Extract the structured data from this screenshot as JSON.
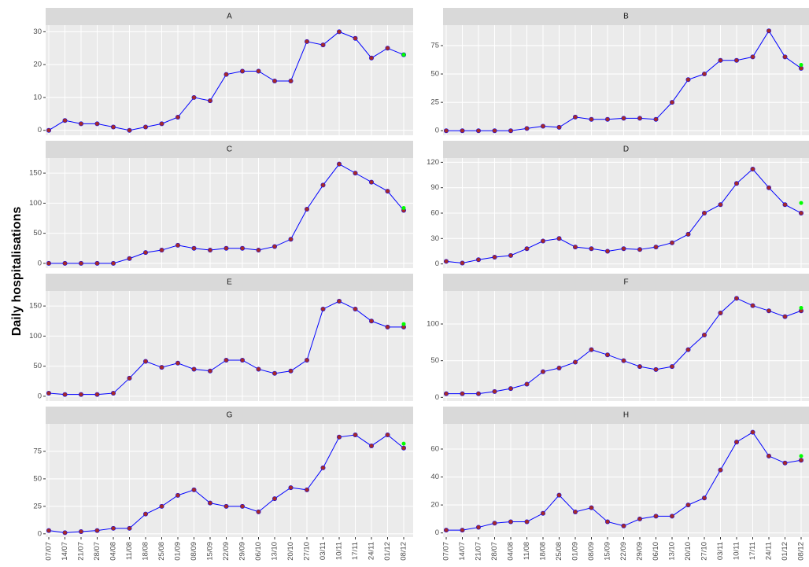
{
  "chart_data": {
    "type": "line",
    "y_label": "Daily hospitalisations",
    "grid": true,
    "categories": [
      "07/07",
      "14/07",
      "21/07",
      "28/07",
      "04/08",
      "11/08",
      "18/08",
      "25/08",
      "01/09",
      "08/09",
      "15/09",
      "22/09",
      "29/09",
      "06/10",
      "13/10",
      "20/10",
      "27/10",
      "03/11",
      "10/11",
      "17/11",
      "24/11",
      "01/12",
      "08/12"
    ],
    "panels": [
      {
        "title": "A",
        "ylim": [
          -1.5,
          32
        ],
        "yticks": [
          0,
          10,
          20,
          30
        ],
        "series": [
          {
            "style": "line",
            "color": "#0000ff",
            "values": [
              0,
              3,
              2,
              2,
              1,
              0,
              1,
              2,
              4,
              10,
              9,
              17,
              18,
              18,
              15,
              15,
              27,
              26,
              30,
              28,
              22,
              25,
              23
            ]
          },
          {
            "style": "points",
            "color": "#a52a2a",
            "values": [
              0,
              3,
              2,
              2,
              1,
              0,
              1,
              2,
              4,
              10,
              9,
              17,
              18,
              18,
              15,
              15,
              27,
              26,
              30,
              28,
              22,
              25,
              23
            ]
          },
          {
            "style": "points",
            "color": "#00ff00",
            "values": [
              null,
              null,
              null,
              null,
              null,
              null,
              null,
              null,
              null,
              null,
              null,
              null,
              null,
              null,
              null,
              null,
              null,
              null,
              null,
              null,
              null,
              null,
              23
            ]
          }
        ]
      },
      {
        "title": "B",
        "ylim": [
          -4,
          93
        ],
        "yticks": [
          0,
          25,
          50,
          75
        ],
        "series": [
          {
            "style": "line",
            "color": "#0000ff",
            "values": [
              0,
              0,
              0,
              0,
              0,
              2,
              4,
              3,
              12,
              10,
              10,
              11,
              11,
              10,
              25,
              45,
              50,
              62,
              62,
              65,
              88,
              65,
              55
            ]
          },
          {
            "style": "points",
            "color": "#a52a2a",
            "values": [
              0,
              0,
              0,
              0,
              0,
              2,
              4,
              3,
              12,
              10,
              10,
              11,
              11,
              10,
              25,
              45,
              50,
              62,
              62,
              65,
              88,
              65,
              55
            ]
          },
          {
            "style": "points",
            "color": "#00ff00",
            "values": [
              null,
              null,
              null,
              null,
              null,
              null,
              null,
              null,
              null,
              null,
              null,
              null,
              null,
              null,
              null,
              null,
              null,
              null,
              null,
              null,
              null,
              null,
              58
            ]
          }
        ]
      },
      {
        "title": "C",
        "ylim": [
          -8,
          175
        ],
        "yticks": [
          0,
          50,
          100,
          150
        ],
        "series": [
          {
            "style": "line",
            "color": "#0000ff",
            "values": [
              0,
              0,
              0,
              0,
              0,
              8,
              18,
              22,
              30,
              25,
              22,
              25,
              25,
              22,
              28,
              40,
              90,
              130,
              165,
              150,
              135,
              120,
              88
            ]
          },
          {
            "style": "points",
            "color": "#a52a2a",
            "values": [
              0,
              0,
              0,
              0,
              0,
              8,
              18,
              22,
              30,
              25,
              22,
              25,
              25,
              22,
              28,
              40,
              90,
              130,
              165,
              150,
              135,
              120,
              88
            ]
          },
          {
            "style": "points",
            "color": "#00ff00",
            "values": [
              null,
              null,
              null,
              null,
              null,
              null,
              null,
              null,
              null,
              null,
              null,
              null,
              null,
              null,
              null,
              null,
              null,
              null,
              null,
              null,
              null,
              null,
              92
            ]
          }
        ]
      },
      {
        "title": "D",
        "ylim": [
          -5,
          125
        ],
        "yticks": [
          0,
          30,
          60,
          90,
          120
        ],
        "series": [
          {
            "style": "line",
            "color": "#0000ff",
            "values": [
              3,
              1,
              5,
              8,
              10,
              18,
              27,
              30,
              20,
              18,
              15,
              18,
              17,
              20,
              25,
              35,
              60,
              70,
              95,
              112,
              90,
              70,
              60
            ]
          },
          {
            "style": "points",
            "color": "#a52a2a",
            "values": [
              3,
              1,
              5,
              8,
              10,
              18,
              27,
              30,
              20,
              18,
              15,
              18,
              17,
              20,
              25,
              35,
              60,
              70,
              95,
              112,
              90,
              70,
              60
            ]
          },
          {
            "style": "points",
            "color": "#00ff00",
            "values": [
              null,
              null,
              null,
              null,
              null,
              null,
              null,
              null,
              null,
              null,
              null,
              null,
              null,
              null,
              null,
              null,
              null,
              null,
              null,
              null,
              null,
              null,
              72
            ]
          }
        ]
      },
      {
        "title": "E",
        "ylim": [
          -8,
          175
        ],
        "yticks": [
          0,
          50,
          100,
          150
        ],
        "series": [
          {
            "style": "line",
            "color": "#0000ff",
            "values": [
              5,
              3,
              3,
              3,
              5,
              30,
              58,
              48,
              55,
              45,
              42,
              60,
              60,
              45,
              38,
              42,
              60,
              145,
              158,
              145,
              125,
              115,
              115
            ]
          },
          {
            "style": "points",
            "color": "#a52a2a",
            "values": [
              5,
              3,
              3,
              3,
              5,
              30,
              58,
              48,
              55,
              45,
              42,
              60,
              60,
              45,
              38,
              42,
              60,
              145,
              158,
              145,
              125,
              115,
              115
            ]
          },
          {
            "style": "points",
            "color": "#00ff00",
            "values": [
              null,
              null,
              null,
              null,
              null,
              null,
              null,
              null,
              null,
              null,
              null,
              null,
              null,
              null,
              null,
              null,
              null,
              null,
              null,
              null,
              null,
              null,
              120
            ]
          }
        ]
      },
      {
        "title": "F",
        "ylim": [
          -5,
          145
        ],
        "yticks": [
          0,
          50,
          100
        ],
        "series": [
          {
            "style": "line",
            "color": "#0000ff",
            "values": [
              5,
              5,
              5,
              8,
              12,
              18,
              35,
              40,
              48,
              65,
              58,
              50,
              42,
              38,
              42,
              65,
              85,
              115,
              135,
              125,
              118,
              110,
              118
            ]
          },
          {
            "style": "points",
            "color": "#a52a2a",
            "values": [
              5,
              5,
              5,
              8,
              12,
              18,
              35,
              40,
              48,
              65,
              58,
              50,
              42,
              38,
              42,
              65,
              85,
              115,
              135,
              125,
              118,
              110,
              118
            ]
          },
          {
            "style": "points",
            "color": "#00ff00",
            "values": [
              null,
              null,
              null,
              null,
              null,
              null,
              null,
              null,
              null,
              null,
              null,
              null,
              null,
              null,
              null,
              null,
              null,
              null,
              null,
              null,
              null,
              null,
              122
            ]
          }
        ]
      },
      {
        "title": "G",
        "ylim": [
          -3,
          100
        ],
        "yticks": [
          0,
          25,
          50,
          75
        ],
        "series": [
          {
            "style": "line",
            "color": "#0000ff",
            "values": [
              3,
              1,
              2,
              3,
              5,
              5,
              18,
              25,
              35,
              40,
              28,
              25,
              25,
              20,
              32,
              42,
              40,
              60,
              88,
              90,
              80,
              90,
              78
            ]
          },
          {
            "style": "points",
            "color": "#a52a2a",
            "values": [
              3,
              1,
              2,
              3,
              5,
              5,
              18,
              25,
              35,
              40,
              28,
              25,
              25,
              20,
              32,
              42,
              40,
              60,
              88,
              90,
              80,
              90,
              78
            ]
          },
          {
            "style": "points",
            "color": "#00ff00",
            "values": [
              null,
              null,
              null,
              null,
              null,
              null,
              null,
              null,
              null,
              null,
              null,
              null,
              null,
              null,
              null,
              null,
              null,
              null,
              null,
              null,
              null,
              null,
              82
            ]
          }
        ]
      },
      {
        "title": "H",
        "ylim": [
          -3,
          78
        ],
        "yticks": [
          0,
          20,
          40,
          60
        ],
        "series": [
          {
            "style": "line",
            "color": "#0000ff",
            "values": [
              2,
              2,
              4,
              7,
              8,
              8,
              14,
              27,
              15,
              18,
              8,
              5,
              10,
              12,
              12,
              20,
              25,
              45,
              65,
              72,
              55,
              50,
              52
            ]
          },
          {
            "style": "points",
            "color": "#a52a2a",
            "values": [
              2,
              2,
              4,
              7,
              8,
              8,
              14,
              27,
              15,
              18,
              8,
              5,
              10,
              12,
              12,
              20,
              25,
              45,
              65,
              72,
              55,
              50,
              52
            ]
          },
          {
            "style": "points",
            "color": "#00ff00",
            "values": [
              null,
              null,
              null,
              null,
              null,
              null,
              null,
              null,
              null,
              null,
              null,
              null,
              null,
              null,
              null,
              null,
              null,
              null,
              null,
              null,
              null,
              null,
              55
            ]
          }
        ]
      }
    ]
  }
}
